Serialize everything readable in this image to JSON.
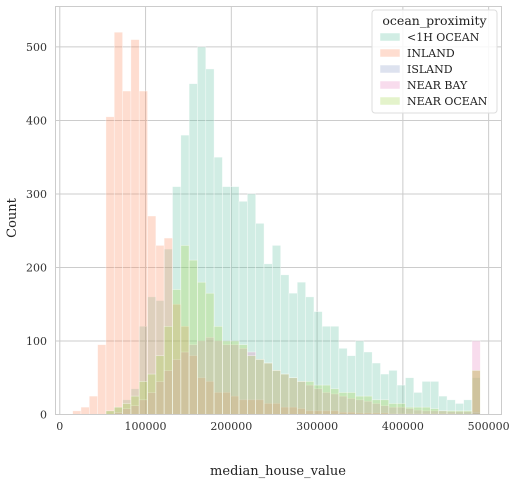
{
  "chart_data": {
    "type": "bar",
    "subtype": "overlaid-histogram",
    "xlabel": "median_house_value",
    "ylabel": "Count",
    "xlim": [
      -5000,
      515000
    ],
    "ylim": [
      0,
      555
    ],
    "xticks": [
      0,
      100000,
      200000,
      300000,
      400000,
      500000
    ],
    "yticks": [
      0,
      100,
      200,
      300,
      400,
      500
    ],
    "grid": true,
    "bin_start": 15000,
    "bin_width": 9700,
    "legend": {
      "title": "ocean_proximity",
      "position": "top-right"
    },
    "series": [
      {
        "name": "<1H OCEAN",
        "color": "#66c2a5",
        "opacity": 0.3,
        "values": [
          0,
          0,
          0,
          0,
          5,
          10,
          20,
          35,
          120,
          160,
          155,
          225,
          310,
          380,
          450,
          500,
          470,
          350,
          310,
          310,
          290,
          300,
          260,
          205,
          230,
          190,
          165,
          180,
          160,
          140,
          120,
          120,
          90,
          80,
          100,
          85,
          70,
          55,
          60,
          40,
          50,
          30,
          45,
          45,
          25,
          20,
          15,
          20,
          50
        ]
      },
      {
        "name": "INLAND",
        "color": "#fc8d62",
        "opacity": 0.3,
        "values": [
          5,
          10,
          25,
          95,
          405,
          520,
          440,
          510,
          440,
          270,
          230,
          240,
          150,
          120,
          80,
          50,
          45,
          30,
          30,
          25,
          20,
          20,
          20,
          15,
          15,
          10,
          10,
          8,
          5,
          5,
          5,
          5,
          3,
          3,
          2,
          2,
          2,
          2,
          1,
          1,
          1,
          1,
          1,
          1,
          1,
          1,
          0,
          0,
          60
        ]
      },
      {
        "name": "ISLAND",
        "color": "#8da0cb",
        "opacity": 0.3,
        "values": [
          0,
          0,
          0,
          0,
          0,
          0,
          0,
          0,
          0,
          0,
          0,
          0,
          0,
          0,
          0,
          0,
          0,
          0,
          0,
          0,
          0,
          0,
          0,
          0,
          0,
          0,
          0,
          0,
          0,
          0,
          0,
          0,
          0,
          0,
          0,
          0,
          0,
          0,
          0,
          0,
          0,
          0,
          0,
          0,
          0,
          0,
          0,
          0,
          3
        ]
      },
      {
        "name": "NEAR BAY",
        "color": "#e78ac3",
        "opacity": 0.3,
        "values": [
          0,
          0,
          0,
          0,
          0,
          3,
          8,
          12,
          20,
          30,
          45,
          60,
          75,
          85,
          95,
          100,
          105,
          100,
          95,
          95,
          90,
          85,
          75,
          70,
          60,
          55,
          50,
          45,
          40,
          35,
          30,
          28,
          25,
          22,
          20,
          18,
          15,
          12,
          10,
          10,
          8,
          6,
          5,
          5,
          5,
          4,
          4,
          4,
          100
        ]
      },
      {
        "name": "NEAR OCEAN",
        "color": "#a6d854",
        "opacity": 0.3,
        "values": [
          0,
          0,
          0,
          0,
          5,
          10,
          15,
          25,
          45,
          55,
          80,
          120,
          170,
          230,
          210,
          180,
          165,
          120,
          100,
          100,
          95,
          80,
          75,
          70,
          60,
          55,
          50,
          45,
          45,
          40,
          40,
          35,
          30,
          30,
          25,
          25,
          20,
          20,
          15,
          15,
          10,
          10,
          10,
          8,
          5,
          5,
          5,
          5,
          60
        ]
      }
    ]
  }
}
